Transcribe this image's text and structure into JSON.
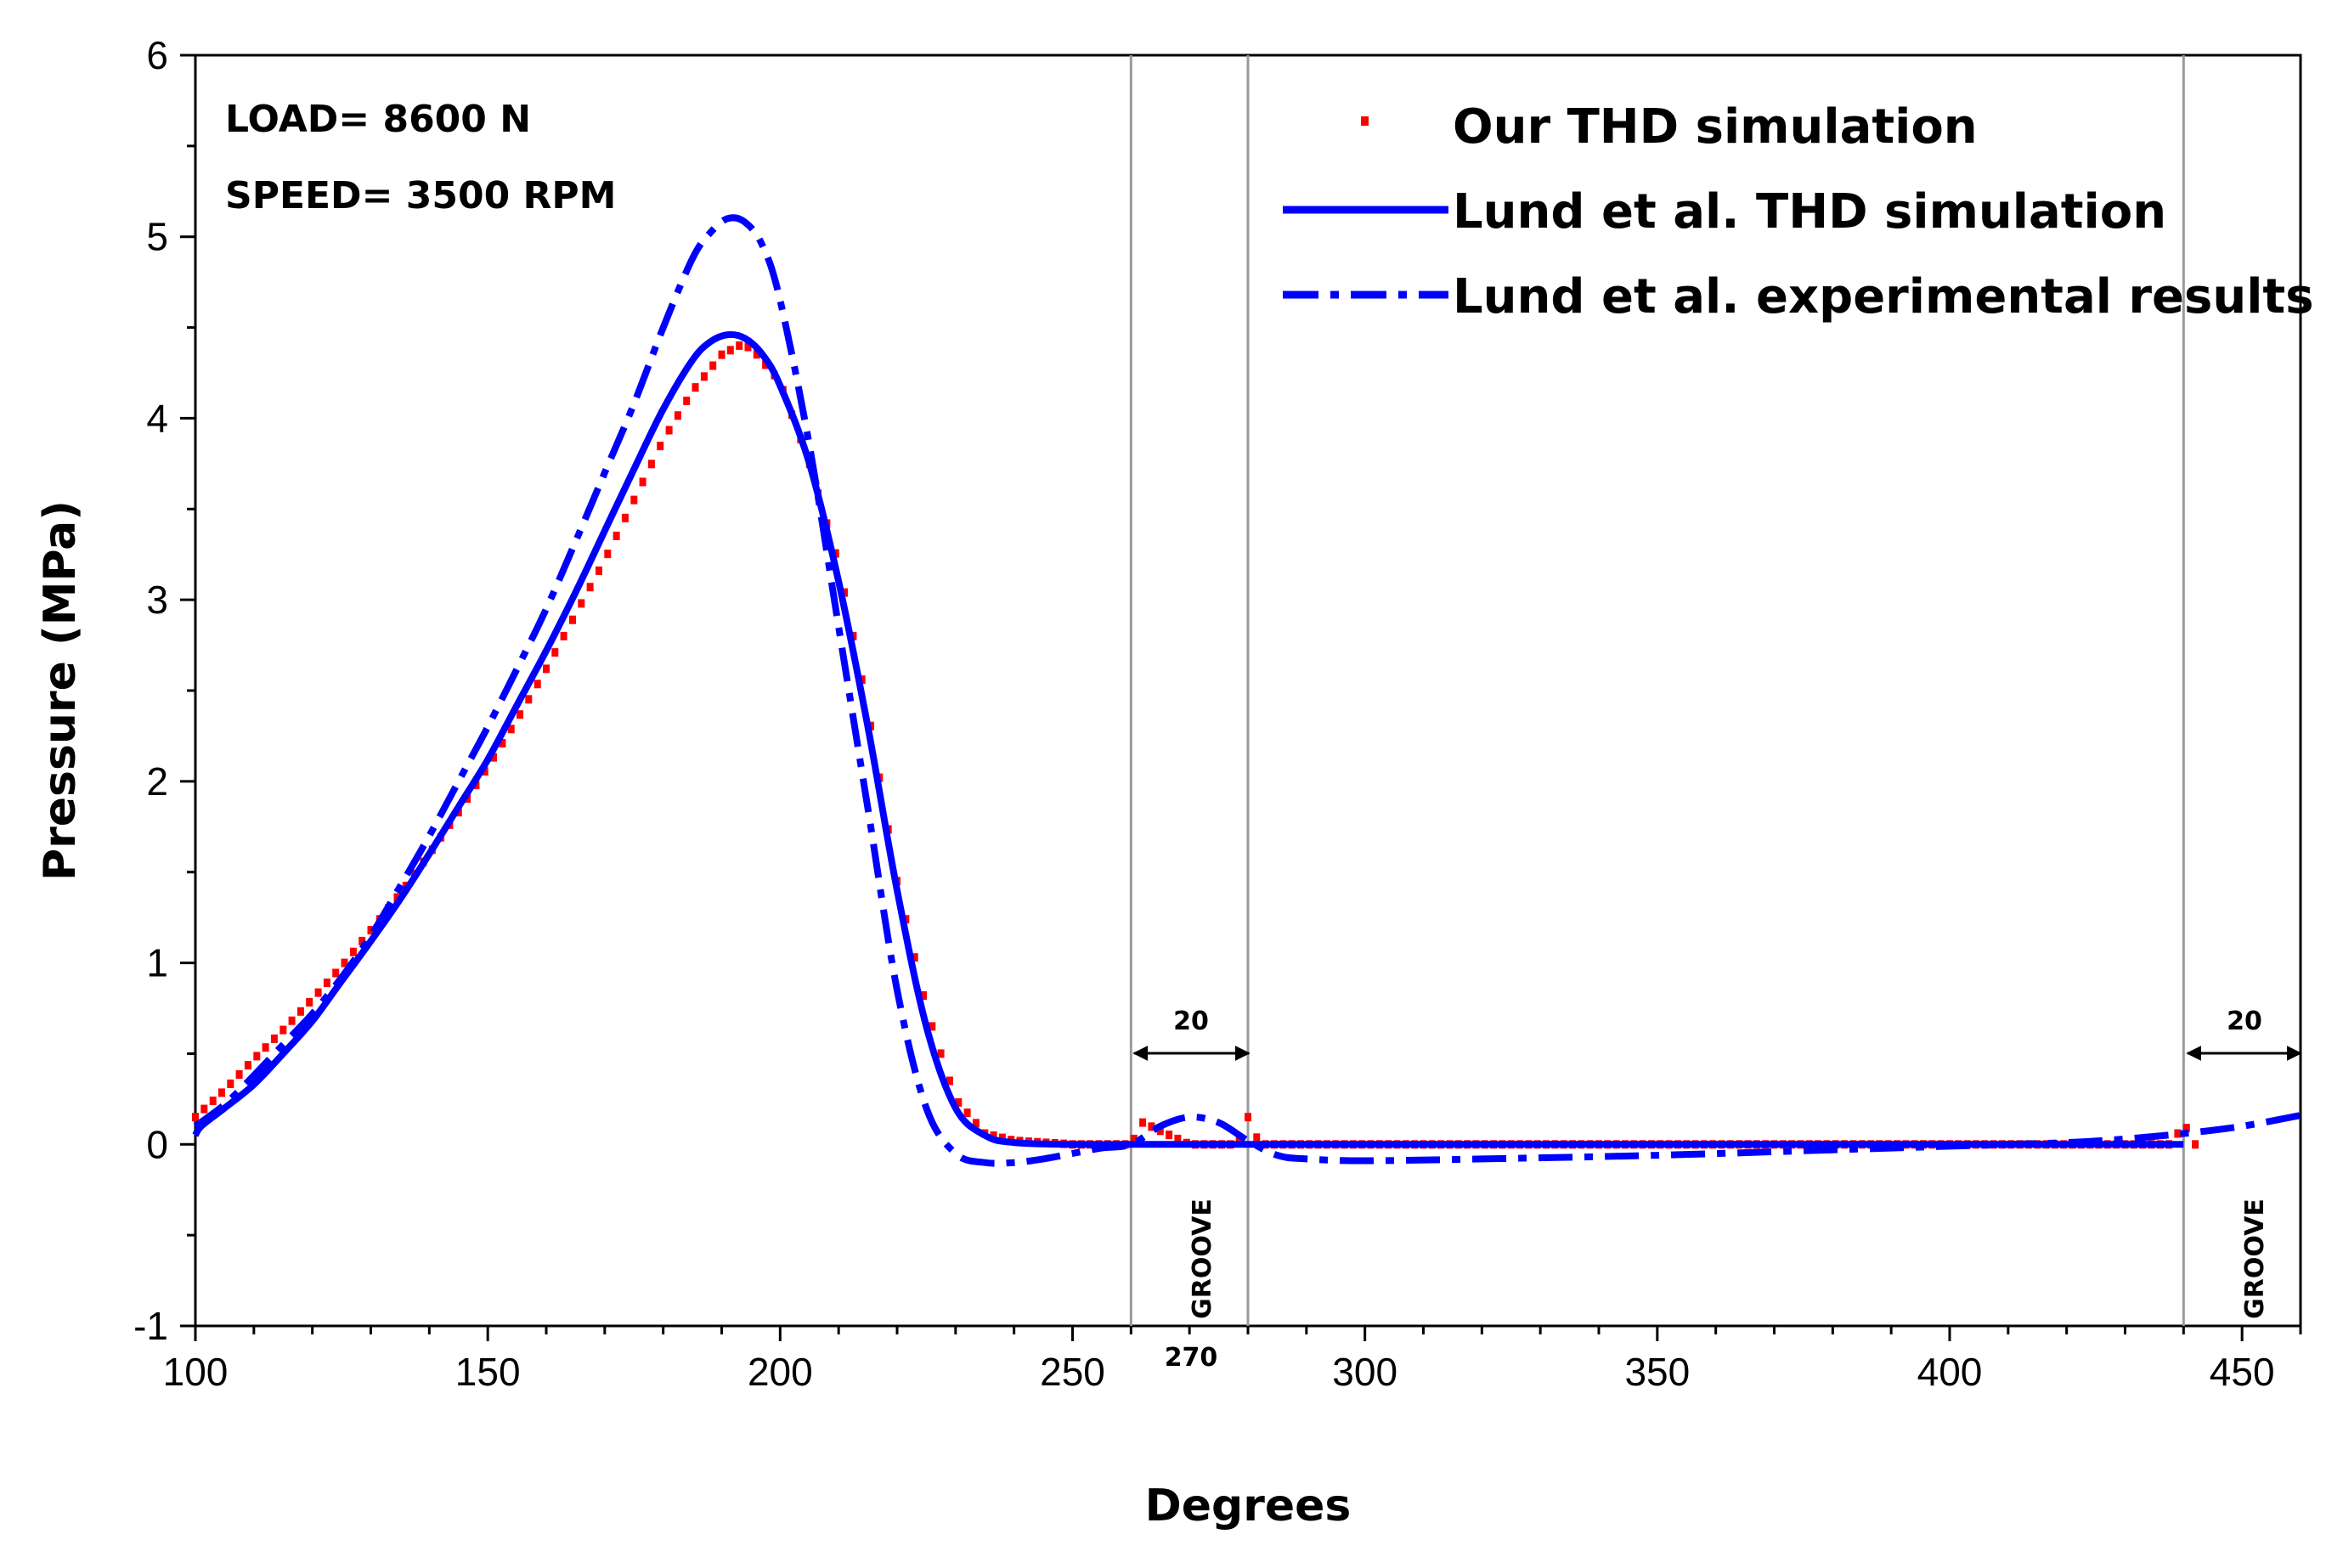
{
  "chart_data": {
    "type": "line",
    "title": "",
    "xlabel": "Degrees",
    "ylabel": "Pressure (MPa)",
    "xlim": [
      100,
      460
    ],
    "ylim": [
      -1,
      6
    ],
    "x_ticks": [
      100,
      150,
      200,
      250,
      300,
      350,
      400,
      450
    ],
    "y_ticks": [
      -1,
      0,
      1,
      2,
      3,
      4,
      5,
      6
    ],
    "annotations": {
      "load": "LOAD=  8600 N",
      "speed": "SPEED= 3500 RPM",
      "groove_label": "GROOVE",
      "groove_width": "20",
      "groove_center": "270"
    },
    "grooves": [
      {
        "start": 260,
        "end": 280
      },
      {
        "start": 440,
        "end": 460
      }
    ],
    "legend_position": "top-right",
    "series": [
      {
        "name": "Our THD simulation",
        "style": "dotted-markers",
        "color": "#ff0000",
        "x": [
          100,
          105,
          110,
          115,
          120,
          125,
          130,
          135,
          140,
          145,
          150,
          155,
          160,
          165,
          170,
          175,
          180,
          185,
          190,
          193,
          195,
          200,
          205,
          210,
          215,
          220,
          225,
          230,
          235,
          240,
          250,
          260,
          262,
          270,
          278,
          280,
          282,
          290,
          300,
          320,
          350,
          380,
          400,
          420,
          438,
          440,
          442
        ],
        "y": [
          0.15,
          0.3,
          0.47,
          0.63,
          0.8,
          0.98,
          1.18,
          1.38,
          1.6,
          1.83,
          2.08,
          2.34,
          2.62,
          2.92,
          3.22,
          3.55,
          3.88,
          4.15,
          4.35,
          4.4,
          4.39,
          4.2,
          3.75,
          3.2,
          2.4,
          1.45,
          0.75,
          0.25,
          0.06,
          0.02,
          0.0,
          0.0,
          0.12,
          0.0,
          0.0,
          0.15,
          0.0,
          0.0,
          0.0,
          0.0,
          0.0,
          0.0,
          0.0,
          0.0,
          0.0,
          0.12,
          0.0
        ]
      },
      {
        "name": "Lund et al. THD simulation",
        "style": "solid",
        "color": "#0000ff",
        "x": [
          100,
          101,
          105,
          110,
          115,
          120,
          125,
          130,
          135,
          140,
          145,
          150,
          155,
          160,
          165,
          170,
          175,
          180,
          185,
          188,
          191,
          194,
          197,
          200,
          205,
          210,
          215,
          220,
          225,
          230,
          235,
          240,
          250,
          260,
          270,
          280,
          290,
          300,
          350,
          400,
          440
        ],
        "y": [
          0.05,
          0.1,
          0.2,
          0.33,
          0.5,
          0.68,
          0.9,
          1.12,
          1.35,
          1.6,
          1.86,
          2.12,
          2.42,
          2.72,
          3.04,
          3.38,
          3.72,
          4.05,
          4.32,
          4.42,
          4.46,
          4.44,
          4.35,
          4.18,
          3.75,
          3.1,
          2.3,
          1.4,
          0.65,
          0.2,
          0.05,
          0.01,
          0.0,
          0.0,
          0.0,
          0.0,
          0.0,
          0.0,
          0.0,
          0.0,
          0.0
        ]
      },
      {
        "name": "Lund et al. experimental results",
        "style": "dash-dot",
        "color": "#0000ff",
        "x": [
          100,
          105,
          110,
          115,
          120,
          125,
          130,
          135,
          140,
          145,
          150,
          155,
          160,
          165,
          170,
          175,
          180,
          185,
          188,
          191,
          194,
          197,
          200,
          205,
          210,
          215,
          220,
          225,
          230,
          235,
          240,
          245,
          250,
          255,
          260,
          265,
          270,
          275,
          280,
          285,
          290,
          300,
          320,
          350,
          380,
          400,
          420,
          430,
          440,
          450,
          460
        ],
        "y": [
          0.1,
          0.22,
          0.38,
          0.55,
          0.72,
          0.92,
          1.15,
          1.42,
          1.7,
          2.0,
          2.3,
          2.62,
          2.95,
          3.32,
          3.7,
          4.08,
          4.5,
          4.88,
          5.02,
          5.1,
          5.08,
          4.95,
          4.65,
          3.85,
          2.85,
          1.85,
          0.85,
          0.2,
          -0.05,
          -0.1,
          -0.1,
          -0.08,
          -0.05,
          -0.02,
          0.0,
          0.1,
          0.15,
          0.12,
          0.02,
          -0.06,
          -0.08,
          -0.09,
          -0.08,
          -0.06,
          -0.03,
          -0.01,
          0.01,
          0.03,
          0.06,
          0.1,
          0.16
        ]
      }
    ]
  }
}
